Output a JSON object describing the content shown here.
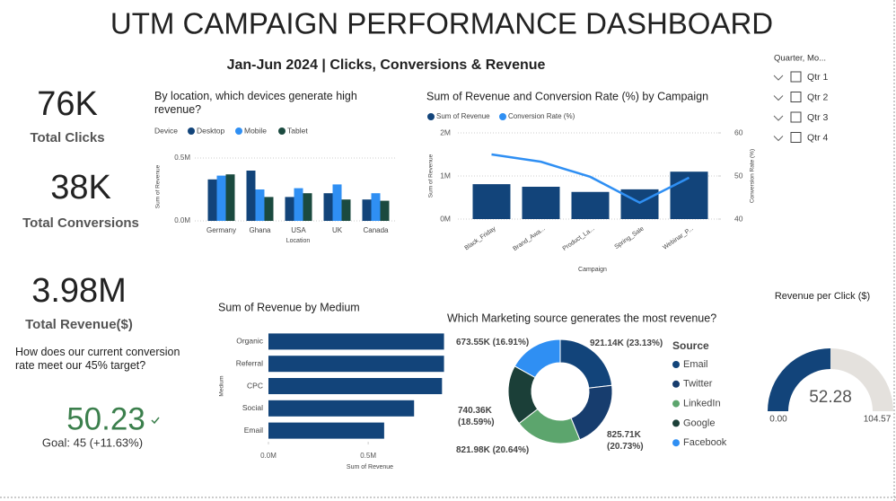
{
  "header": {
    "title": "UTM CAMPAIGN PERFORMANCE DASHBOARD",
    "subtitle": "Jan-Jun 2024 | Clicks, Conversions & Revenue"
  },
  "kpis": [
    {
      "value": "76K",
      "label": "Total Clicks"
    },
    {
      "value": "38K",
      "label": "Total Conversions"
    },
    {
      "value": "3.98M",
      "label": "Total Revenue($)"
    }
  ],
  "target": {
    "question": "How does our current conversion rate meet our 45% target?",
    "value": 50.23,
    "goal": "Goal: 45 (+11.63%)",
    "color": "#3b7f4c"
  },
  "slicer": {
    "title": "Quarter, Mo...",
    "items": [
      "Qtr 1",
      "Qtr 2",
      "Qtr 3",
      "Qtr 4"
    ]
  },
  "chart_data": [
    {
      "type": "grouped_bar",
      "title": "By location, which devices generate high revenue?",
      "legend_title": "Device",
      "categories": [
        "Germany",
        "Ghana",
        "USA",
        "UK",
        "Canada"
      ],
      "series": [
        {
          "name": "Desktop",
          "color": "#12447a",
          "values": [
            330000,
            400000,
            190000,
            220000,
            170000
          ]
        },
        {
          "name": "Mobile",
          "color": "#2f8ff3",
          "values": [
            360000,
            250000,
            260000,
            290000,
            220000
          ]
        },
        {
          "name": "Tablet",
          "color": "#1b4a3f",
          "values": [
            370000,
            190000,
            220000,
            170000,
            160000
          ]
        }
      ],
      "x_label": "Location",
      "y_label": "Sum of Revenue",
      "ylim": [
        0,
        550000
      ],
      "yticks": [
        {
          "value": 0,
          "label": "0.0M"
        },
        {
          "value": 500000,
          "label": "0.5M"
        }
      ],
      "grid": true
    },
    {
      "type": "combo",
      "title": "Sum of Revenue and Conversion Rate (%) by Campaign",
      "categories": [
        "Black_Friday",
        "Brand_Awa...",
        "Product_La...",
        "Spring_Sale",
        "Webinar_P..."
      ],
      "series": [
        {
          "name": "Sum of Revenue",
          "color": "#12447a",
          "values": [
            810000,
            750000,
            630000,
            690000,
            1100000
          ]
        },
        {
          "name": "Conversion Rate (%)",
          "color": "#2f8ff3",
          "axis": "y2",
          "values": [
            55,
            53.3,
            49.8,
            43.8,
            49.6
          ]
        }
      ],
      "x_label": "Campaign",
      "y_label": "Sum of Revenue",
      "y2_label": "Conversion Rate (%)",
      "ylim": [
        0,
        2000000
      ],
      "yticks": [
        {
          "value": 0,
          "label": "0M"
        },
        {
          "value": 1000000,
          "label": "1M"
        },
        {
          "value": 2000000,
          "label": "2M"
        }
      ],
      "y2lim": [
        40,
        60
      ],
      "y2ticks": [
        40,
        50,
        60
      ],
      "grid": true
    },
    {
      "type": "hbar",
      "title": "Sum of Revenue by Medium",
      "categories": [
        "Organic",
        "Referral",
        "CPC",
        "Social",
        "Email"
      ],
      "values": [
        880000,
        880000,
        870000,
        730000,
        580000
      ],
      "color": "#12447a",
      "x_label": "Sum of Revenue",
      "y_label": "Medium",
      "xlim": [
        0,
        900000
      ],
      "xticks": [
        {
          "value": 0,
          "label": "0.0M"
        },
        {
          "value": 500000,
          "label": "0.5M"
        }
      ]
    },
    {
      "type": "donut",
      "title": "Which Marketing source generates the most revenue?",
      "legend_title": "Source",
      "categories": [
        "Email",
        "Twitter",
        "LinkedIn",
        "Google",
        "Facebook"
      ],
      "values": [
        921140,
        825710,
        821980,
        740360,
        673550
      ],
      "value_labels": [
        "921.14K (23.13%)",
        "825.71K (20.73%)",
        "821.98K (20.64%)",
        "740.36K (18.59%)",
        "673.55K (16.91%)"
      ],
      "colors": [
        "#12447a",
        "#173d6e",
        "#5ca56d",
        "#1b3f38",
        "#2f8ff3"
      ]
    },
    {
      "type": "gauge",
      "title": "Revenue per Click ($)",
      "value": 52.28,
      "min": {
        "value": 0,
        "label": "0.00"
      },
      "max": 104.57,
      "color": "#12447a",
      "track_color": "#e4e1dd"
    }
  ]
}
